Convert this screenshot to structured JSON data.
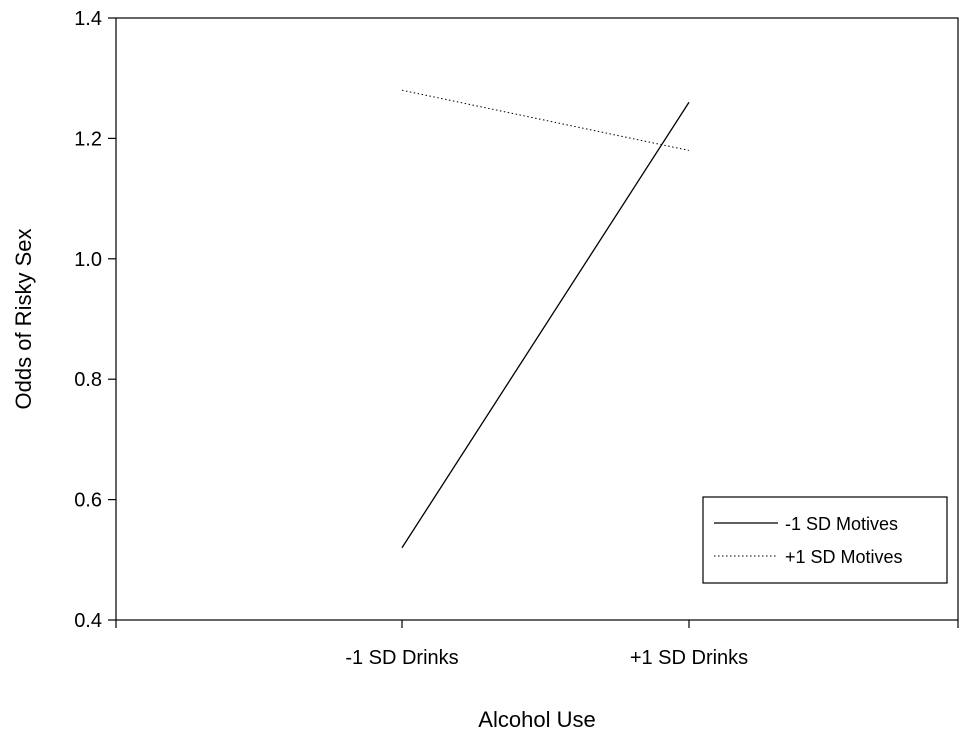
{
  "chart_data": {
    "type": "line",
    "title": "",
    "xlabel": "Alcohol Use",
    "ylabel": "Odds of Risky Sex",
    "categories": [
      "-1 SD Drinks",
      "+1 SD Drinks"
    ],
    "ylim": [
      0.4,
      1.4
    ],
    "yticks": [
      "0.4",
      "0.6",
      "0.8",
      "1.0",
      "1.2",
      "1.4"
    ],
    "series": [
      {
        "name": "-1 SD Motives",
        "values": [
          0.52,
          1.26
        ],
        "color": "#000000",
        "dash": "solid"
      },
      {
        "name": "+1 SD Motives",
        "values": [
          1.28,
          1.18
        ],
        "color": "#000000",
        "dash": "dotted"
      }
    ],
    "grid": false,
    "legend": "bottom-right"
  }
}
